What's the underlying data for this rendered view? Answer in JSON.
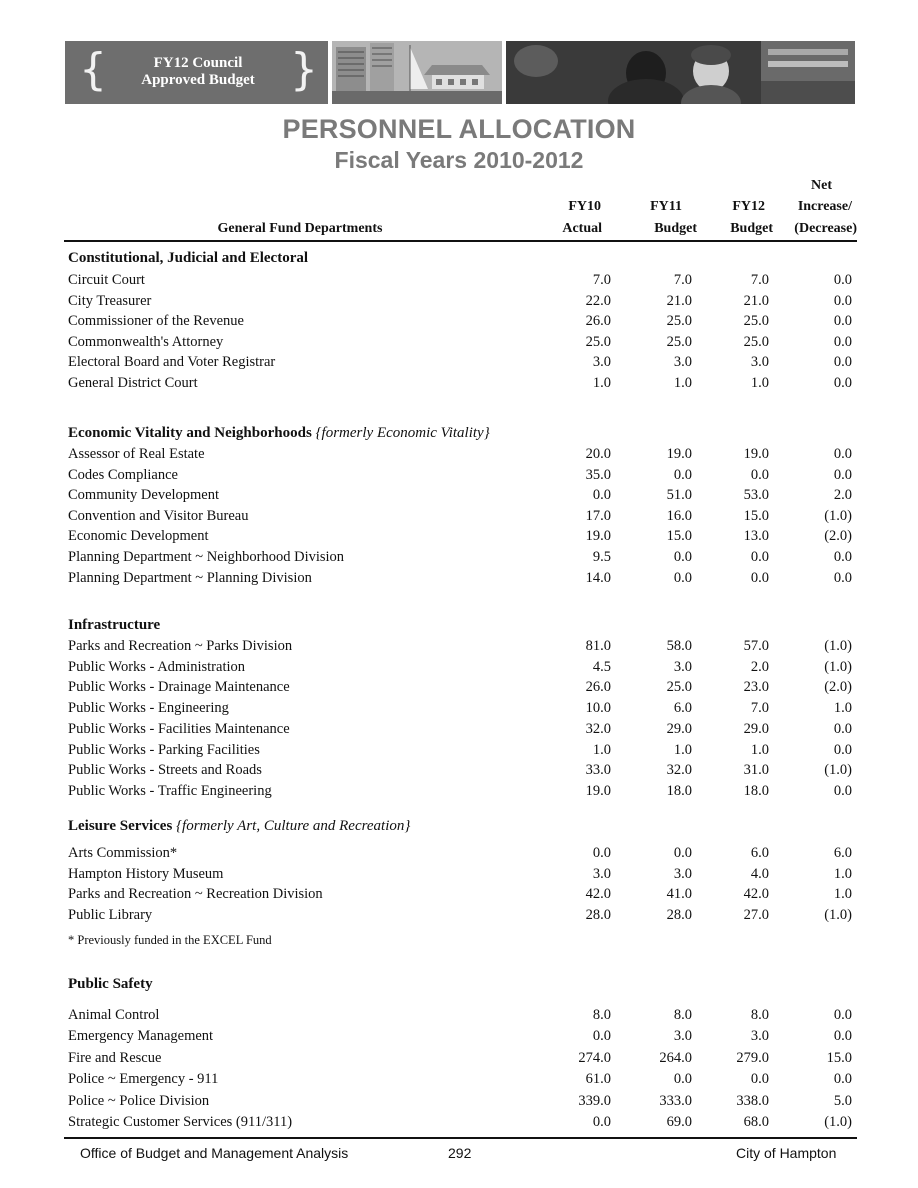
{
  "banner": {
    "line1": "FY12 Council",
    "line2": "Approved Budget"
  },
  "title": "PERSONNEL ALLOCATION",
  "subtitle": "Fiscal Years 2010-2012",
  "columns": {
    "dept": "General Fund Departments",
    "fy10_l1": "FY10",
    "fy10_l2": "Actual",
    "fy11_l1": "FY11",
    "fy11_l2": "Budget",
    "fy12_l1": "FY12",
    "fy12_l2": "Budget",
    "net_l1": "Net",
    "net_l2": "Increase/",
    "net_l3": "(Decrease)"
  },
  "sections": [
    {
      "title": "Constitutional, Judicial and Electoral",
      "note": "",
      "rows": [
        {
          "name": "Circuit Court",
          "fy10": "7.0",
          "fy11": "7.0",
          "fy12": "7.0",
          "net": "0.0"
        },
        {
          "name": "City Treasurer",
          "fy10": "22.0",
          "fy11": "21.0",
          "fy12": "21.0",
          "net": "0.0"
        },
        {
          "name": "Commissioner of the Revenue",
          "fy10": "26.0",
          "fy11": "25.0",
          "fy12": "25.0",
          "net": "0.0"
        },
        {
          "name": "Commonwealth's Attorney",
          "fy10": "25.0",
          "fy11": "25.0",
          "fy12": "25.0",
          "net": "0.0"
        },
        {
          "name": "Electoral Board and Voter Registrar",
          "fy10": "3.0",
          "fy11": "3.0",
          "fy12": "3.0",
          "net": "0.0"
        },
        {
          "name": "General District Court",
          "fy10": "1.0",
          "fy11": "1.0",
          "fy12": "1.0",
          "net": "0.0"
        }
      ]
    },
    {
      "title": "Economic Vitality and Neighborhoods",
      "note": "{formerly Economic Vitality}",
      "rows": [
        {
          "name": "Assessor of Real Estate",
          "fy10": "20.0",
          "fy11": "19.0",
          "fy12": "19.0",
          "net": "0.0"
        },
        {
          "name": "Codes Compliance",
          "fy10": "35.0",
          "fy11": "0.0",
          "fy12": "0.0",
          "net": "0.0"
        },
        {
          "name": "Community Development",
          "fy10": "0.0",
          "fy11": "51.0",
          "fy12": "53.0",
          "net": "2.0"
        },
        {
          "name": "Convention and Visitor Bureau",
          "fy10": "17.0",
          "fy11": "16.0",
          "fy12": "15.0",
          "net": "(1.0)"
        },
        {
          "name": "Economic Development",
          "fy10": "19.0",
          "fy11": "15.0",
          "fy12": "13.0",
          "net": "(2.0)"
        },
        {
          "name": "Planning Department ~ Neighborhood Division",
          "fy10": "9.5",
          "fy11": "0.0",
          "fy12": "0.0",
          "net": "0.0"
        },
        {
          "name": "Planning Department ~ Planning Division",
          "fy10": "14.0",
          "fy11": "0.0",
          "fy12": "0.0",
          "net": "0.0"
        }
      ]
    },
    {
      "title": "Infrastructure",
      "note": "",
      "rows": [
        {
          "name": "Parks and Recreation ~ Parks Division",
          "fy10": "81.0",
          "fy11": "58.0",
          "fy12": "57.0",
          "net": "(1.0)"
        },
        {
          "name": "Public Works - Administration",
          "fy10": "4.5",
          "fy11": "3.0",
          "fy12": "2.0",
          "net": "(1.0)"
        },
        {
          "name": "Public Works - Drainage Maintenance",
          "fy10": "26.0",
          "fy11": "25.0",
          "fy12": "23.0",
          "net": "(2.0)"
        },
        {
          "name": "Public Works - Engineering",
          "fy10": "10.0",
          "fy11": "6.0",
          "fy12": "7.0",
          "net": "1.0"
        },
        {
          "name": "Public Works - Facilities Maintenance",
          "fy10": "32.0",
          "fy11": "29.0",
          "fy12": "29.0",
          "net": "0.0"
        },
        {
          "name": "Public Works - Parking Facilities",
          "fy10": "1.0",
          "fy11": "1.0",
          "fy12": "1.0",
          "net": "0.0"
        },
        {
          "name": "Public Works - Streets and Roads",
          "fy10": "33.0",
          "fy11": "32.0",
          "fy12": "31.0",
          "net": "(1.0)"
        },
        {
          "name": "Public Works - Traffic Engineering",
          "fy10": "19.0",
          "fy11": "18.0",
          "fy12": "18.0",
          "net": "0.0"
        }
      ]
    },
    {
      "title": "Leisure Services",
      "note": "{formerly Art, Culture and Recreation}",
      "rows": [
        {
          "name": "Arts Commission*",
          "fy10": "0.0",
          "fy11": "0.0",
          "fy12": "6.0",
          "net": "6.0"
        },
        {
          "name": "Hampton History Museum",
          "fy10": "3.0",
          "fy11": "3.0",
          "fy12": "4.0",
          "net": "1.0"
        },
        {
          "name": "Parks and Recreation ~ Recreation Division",
          "fy10": "42.0",
          "fy11": "41.0",
          "fy12": "42.0",
          "net": "1.0"
        },
        {
          "name": "Public Library",
          "fy10": "28.0",
          "fy11": "28.0",
          "fy12": "27.0",
          "net": "(1.0)"
        }
      ]
    },
    {
      "title": "Public Safety",
      "note": "",
      "rows": [
        {
          "name": "Animal Control",
          "fy10": "8.0",
          "fy11": "8.0",
          "fy12": "8.0",
          "net": "0.0"
        },
        {
          "name": "Emergency Management",
          "fy10": "0.0",
          "fy11": "3.0",
          "fy12": "3.0",
          "net": "0.0"
        },
        {
          "name": "Fire and Rescue",
          "fy10": "274.0",
          "fy11": "264.0",
          "fy12": "279.0",
          "net": "15.0"
        },
        {
          "name": "Police ~ Emergency - 911",
          "fy10": "61.0",
          "fy11": "0.0",
          "fy12": "0.0",
          "net": "0.0"
        },
        {
          "name": "Police ~ Police Division",
          "fy10": "339.0",
          "fy11": "333.0",
          "fy12": "338.0",
          "net": "5.0"
        },
        {
          "name": "Strategic Customer Services (911/311)",
          "fy10": "0.0",
          "fy11": "69.0",
          "fy12": "68.0",
          "net": "(1.0)"
        }
      ]
    }
  ],
  "footnote": "* Previously funded in the EXCEL Fund",
  "footer": {
    "office": "Office of Budget and Management Analysis",
    "page": "292",
    "city": "City of Hampton"
  }
}
